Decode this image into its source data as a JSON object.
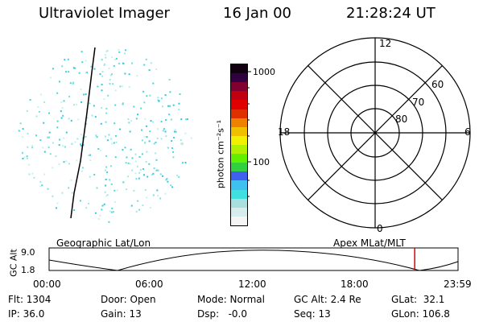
{
  "header": {
    "instrument": "Ultraviolet Imager",
    "date": "16 Jan 00",
    "time": "21:28:24 UT"
  },
  "colorbar": {
    "unit_label": "photon cm⁻²s⁻¹",
    "tick_top": "1000",
    "tick_mid": "100",
    "colors": [
      "#f5f5f5",
      "#d8ecec",
      "#a8e0e0",
      "#40e0e0",
      "#40c0f0",
      "#4060f0",
      "#30d040",
      "#60f000",
      "#b0f000",
      "#f0f000",
      "#f0c000",
      "#f08000",
      "#e03000",
      "#e00000",
      "#c00010",
      "#800030",
      "#300040",
      "#100010"
    ]
  },
  "left_panel": {
    "title": "Geographic Lat/Lon"
  },
  "polar_plot": {
    "title": "Apex MLat/MLT",
    "mlt_labels": {
      "top": "12",
      "left": "18",
      "right": "6",
      "bottom": "0"
    },
    "lat_labels": [
      "60",
      "70",
      "80"
    ]
  },
  "timeline": {
    "ylabel": "GC Alt",
    "y_max": "9.0",
    "y_min": "1.8",
    "ticks": [
      "00:00",
      "06:00",
      "12:00",
      "18:00",
      "23:59"
    ],
    "current_time_fraction": 0.894,
    "marker_color": "#e00000"
  },
  "status": {
    "flt": "Flt: 1304",
    "ip": "IP: 36.0",
    "door": "Door: Open",
    "gain": "Gain: 13",
    "mode": "Mode: Normal",
    "dsp": "Dsp:   -0.0",
    "gcalt": "GC Alt: 2.4 Re",
    "seq": "Seq: 13",
    "glat": "GLat:  32.1",
    "glon": "GLon: 106.8"
  }
}
